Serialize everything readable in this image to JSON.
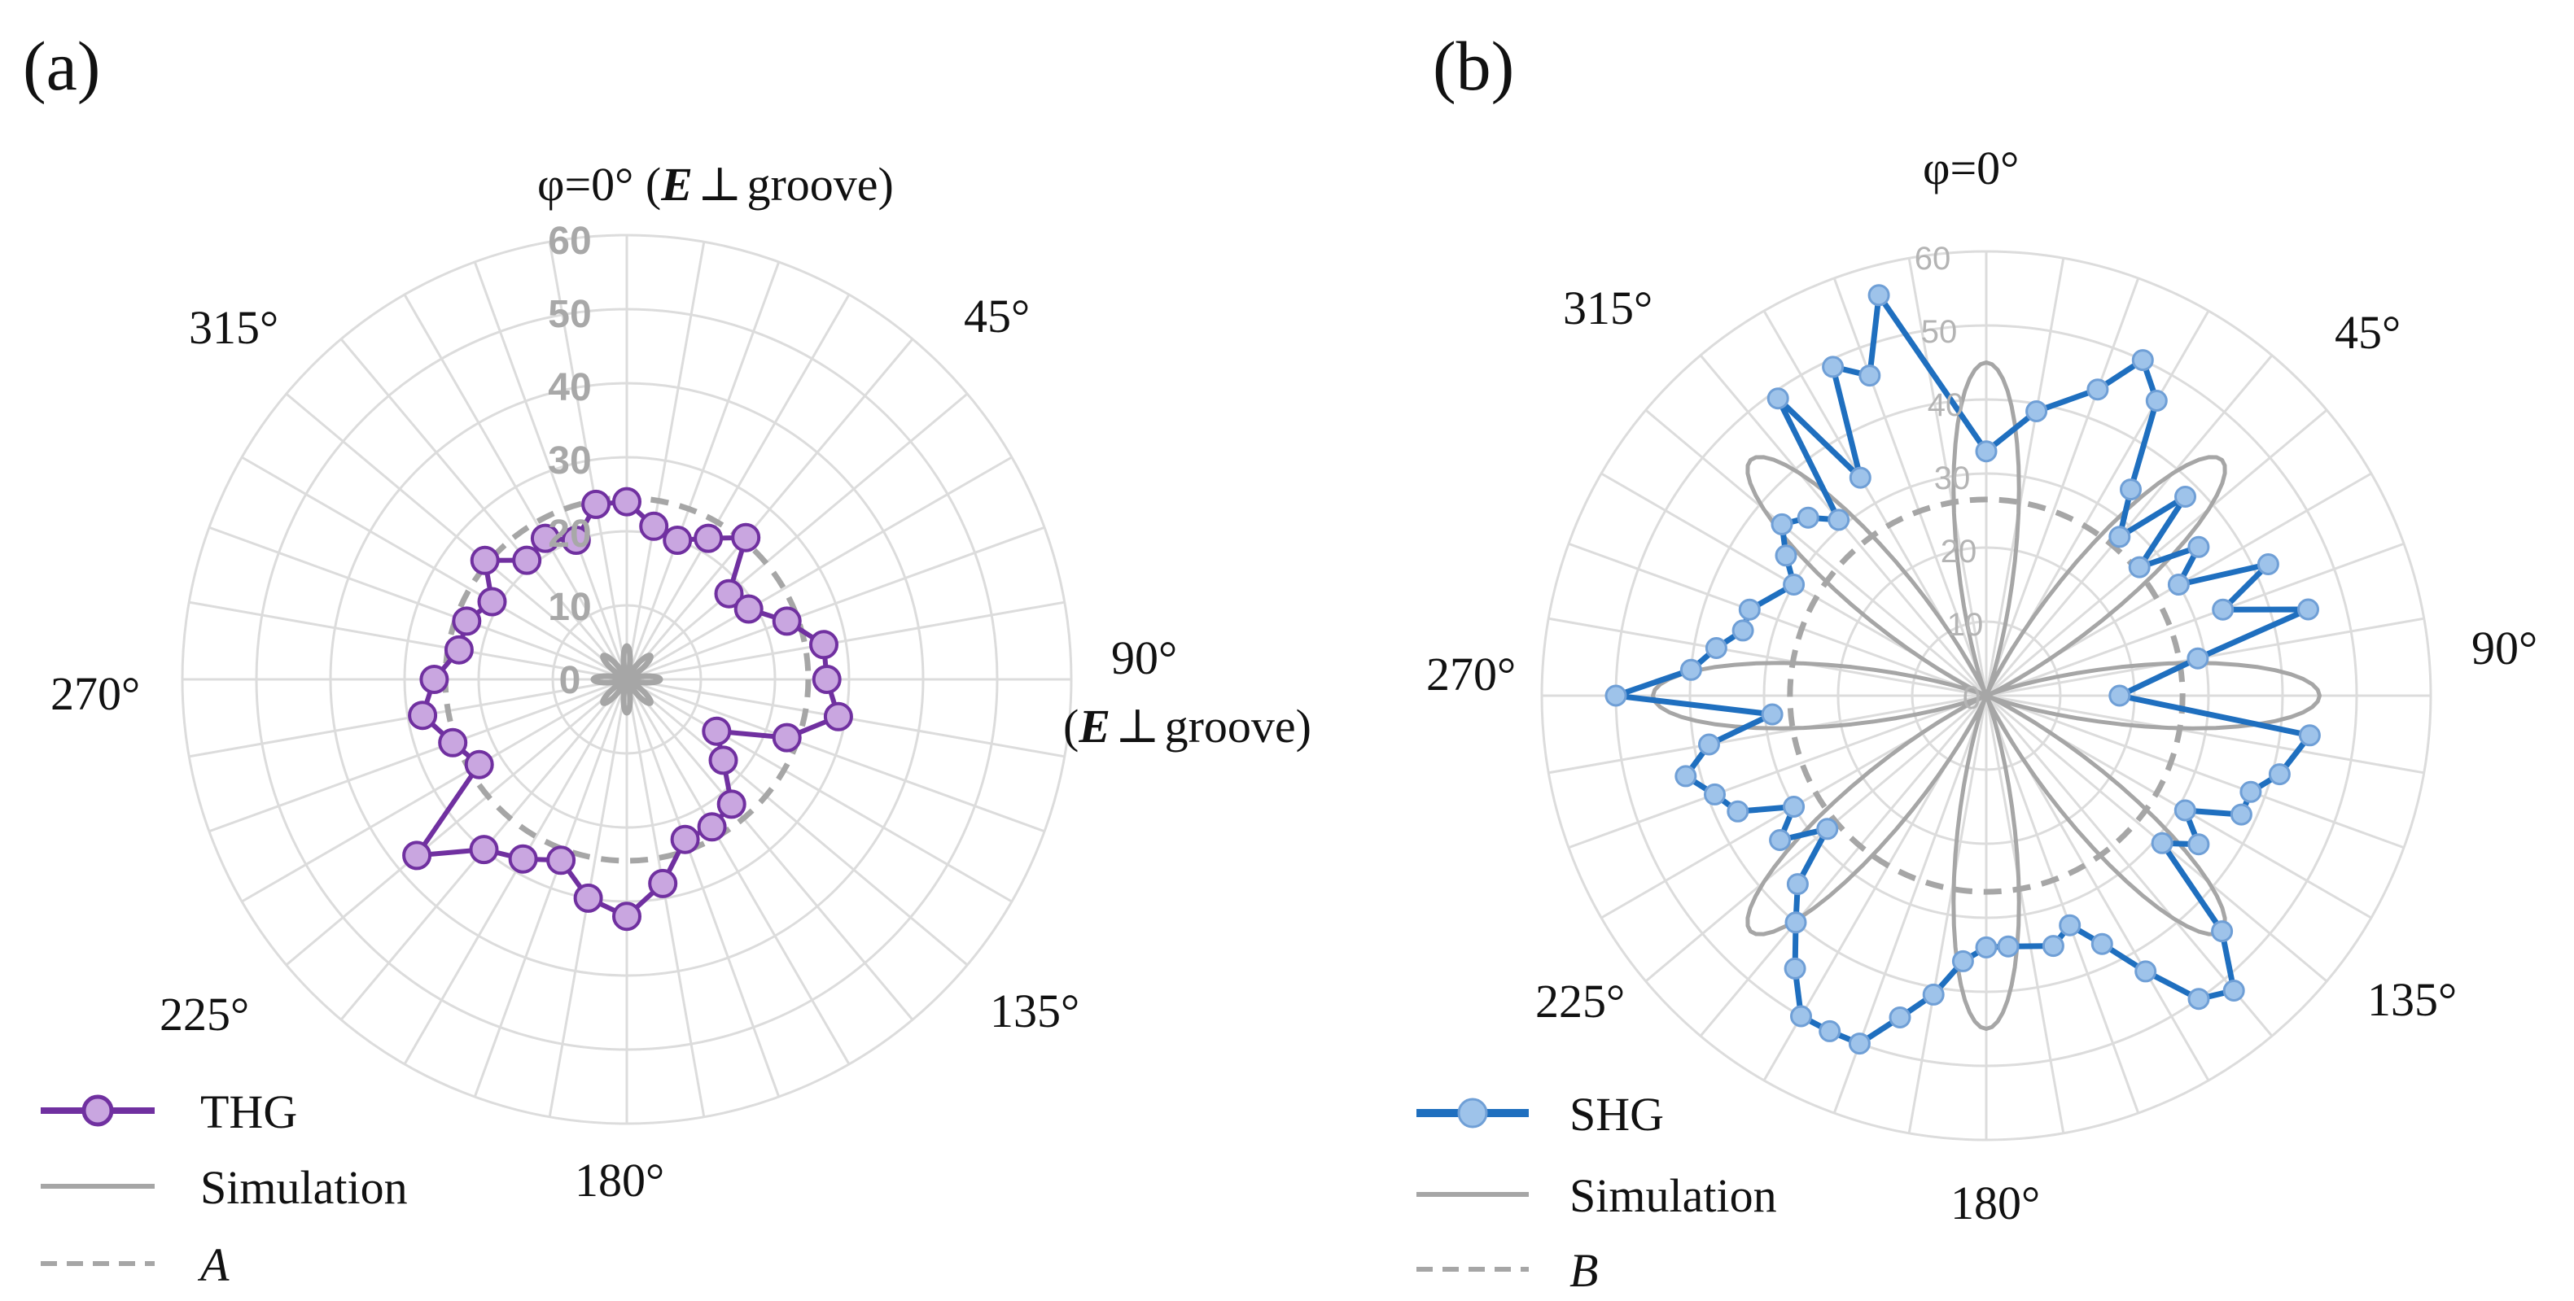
{
  "figure": {
    "panels": [
      {
        "id": "a",
        "panel_label": "(a)",
        "top_label_prefix": "φ=0°",
        "top_label_paren_open": "(",
        "top_label_field": "E",
        "top_label_perp": "⊥",
        "top_label_suffix": "groove)",
        "right_label_angle": "90°",
        "right_label_paren_open": "(",
        "right_label_field": "E",
        "right_label_perp": "⊥",
        "right_label_suffix": "groove)",
        "angle_labels": {
          "a45": "45°",
          "a135": "135°",
          "a180": "180°",
          "a225": "225°",
          "a270": "270°",
          "a315": "315°"
        },
        "radial_ticks": [
          "0",
          "10",
          "20",
          "30",
          "40",
          "50",
          "60"
        ],
        "legend": [
          {
            "label": "THG",
            "style": "line-marker",
            "color": "#7030a0",
            "marker_fill": "#c9a6e0"
          },
          {
            "label": "Simulation",
            "style": "solid",
            "color": "#a6a6a6"
          },
          {
            "label": "A",
            "style": "dashed",
            "color": "#a6a6a6",
            "italic": true
          }
        ]
      },
      {
        "id": "b",
        "panel_label": "(b)",
        "top_label_prefix": "φ=0°",
        "right_label_angle": "90°",
        "angle_labels": {
          "a45": "45°",
          "a135": "135°",
          "a180": "180°",
          "a225": "225°",
          "a270": "270°",
          "a315": "315°"
        },
        "radial_ticks": [
          "0",
          "10",
          "20",
          "30",
          "40",
          "50",
          "60"
        ],
        "legend": [
          {
            "label": "SHG",
            "style": "line-marker",
            "color": "#1f6fbf",
            "marker_fill": "#9ec3ea"
          },
          {
            "label": "Simulation",
            "style": "solid",
            "color": "#a6a6a6"
          },
          {
            "label": "B",
            "style": "dashed",
            "color": "#a6a6a6",
            "italic": true
          }
        ]
      }
    ]
  },
  "chart_data": [
    {
      "type": "polar-line",
      "panel": "a",
      "title": "(a)",
      "angle_unit": "degrees",
      "angle_zero": "top",
      "direction": "clockwise",
      "r_range": [
        0,
        60
      ],
      "grid_angle_step": 10,
      "series": [
        {
          "name": "THG",
          "color": "#7030a0",
          "marker_fill": "#c9a6e0",
          "points": [
            [
              0,
              24
            ],
            [
              10,
              21
            ],
            [
              20,
              20
            ],
            [
              30,
              22
            ],
            [
              40,
              25
            ],
            [
              50,
              18
            ],
            [
              60,
              19
            ],
            [
              70,
              23
            ],
            [
              80,
              27
            ],
            [
              90,
              27
            ],
            [
              100,
              29
            ],
            [
              110,
              23
            ],
            [
              120,
              14
            ],
            [
              130,
              17
            ],
            [
              140,
              22
            ],
            [
              150,
              23
            ],
            [
              160,
              23
            ],
            [
              170,
              28
            ],
            [
              180,
              32
            ],
            [
              190,
              30
            ],
            [
              200,
              26
            ],
            [
              210,
              28
            ],
            [
              220,
              30
            ],
            [
              230,
              37
            ],
            [
              240,
              23
            ],
            [
              250,
              25
            ],
            [
              260,
              28
            ],
            [
              270,
              26
            ],
            [
              280,
              23
            ],
            [
              290,
              23
            ],
            [
              300,
              21
            ],
            [
              310,
              25
            ],
            [
              320,
              21
            ],
            [
              330,
              22
            ],
            [
              340,
              20
            ],
            [
              350,
              24
            ]
          ]
        },
        {
          "name": "Simulation",
          "color": "#a6a6a6",
          "style": "solid",
          "lobes": 8,
          "r_min": 0,
          "r_max": 4.5
        },
        {
          "name": "A",
          "color": "#a6a6a6",
          "style": "dashed",
          "constant_r": 24.5
        }
      ]
    },
    {
      "type": "polar-line",
      "panel": "b",
      "title": "(b)",
      "angle_unit": "degrees",
      "angle_zero": "top",
      "direction": "clockwise",
      "r_range": [
        0,
        60
      ],
      "grid_angle_step": 10,
      "series": [
        {
          "name": "SHG",
          "color": "#1f6fbf",
          "marker_fill": "#9ec3ea",
          "points": [
            [
              0,
              33
            ],
            [
              10,
              39
            ],
            [
              20,
              44
            ],
            [
              25,
              50
            ],
            [
              30,
              46
            ],
            [
              35,
              34
            ],
            [
              40,
              28
            ],
            [
              45,
              38
            ],
            [
              50,
              27
            ],
            [
              55,
              35
            ],
            [
              60,
              30
            ],
            [
              65,
              42
            ],
            [
              70,
              34
            ],
            [
              75,
              45
            ],
            [
              80,
              29
            ],
            [
              90,
              18
            ],
            [
              97,
              44
            ],
            [
              105,
              41
            ],
            [
              110,
              38
            ],
            [
              115,
              38
            ],
            [
              120,
              31
            ],
            [
              125,
              35
            ],
            [
              130,
              31
            ],
            [
              135,
              45
            ],
            [
              140,
              52
            ],
            [
              145,
              50
            ],
            [
              150,
              43
            ],
            [
              155,
              37
            ],
            [
              160,
              33
            ],
            [
              165,
              35
            ],
            [
              175,
              34
            ],
            [
              180,
              34
            ],
            [
              185,
              36
            ],
            [
              190,
              41
            ],
            [
              195,
              45
            ],
            [
              200,
              50
            ],
            [
              205,
              50
            ],
            [
              210,
              50
            ],
            [
              215,
              45
            ],
            [
              220,
              40
            ],
            [
              225,
              36
            ],
            [
              230,
              28
            ],
            [
              235,
              34
            ],
            [
              240,
              30
            ],
            [
              245,
              37
            ],
            [
              250,
              39
            ],
            [
              255,
              42
            ],
            [
              260,
              38
            ],
            [
              265,
              29
            ],
            [
              270,
              50
            ],
            [
              275,
              40
            ],
            [
              280,
              37
            ],
            [
              285,
              34
            ],
            [
              290,
              34
            ],
            [
              300,
              30
            ],
            [
              305,
              33
            ],
            [
              310,
              36
            ],
            [
              315,
              34
            ],
            [
              320,
              31
            ],
            [
              325,
              49
            ],
            [
              330,
              34
            ],
            [
              335,
              49
            ],
            [
              340,
              46
            ],
            [
              345,
              56
            ]
          ]
        },
        {
          "name": "Simulation",
          "color": "#a6a6a6",
          "style": "solid",
          "lobes": 8,
          "r_min": 0,
          "r_max": 45
        },
        {
          "name": "B",
          "color": "#a6a6a6",
          "style": "dashed",
          "constant_r": 26.5
        }
      ]
    }
  ]
}
